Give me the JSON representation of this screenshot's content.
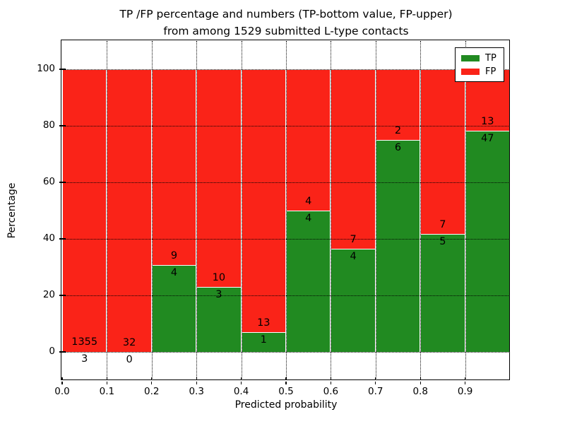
{
  "title": {
    "line1": "TP /FP percentage and numbers (TP-bottom value, FP-upper)",
    "line2": "from among 1529 submitted L-type contacts"
  },
  "axes": {
    "ylabel": "Percentage",
    "xlabel": "Predicted probability",
    "ytick_labels": [
      "0",
      "20",
      "40",
      "60",
      "80",
      "100"
    ],
    "ytick_values": [
      0,
      20,
      40,
      60,
      80,
      100
    ],
    "xtick_labels": [
      "0.0",
      "0.1",
      "0.2",
      "0.3",
      "0.4",
      "0.5",
      "0.6",
      "0.7",
      "0.8",
      "0.9"
    ],
    "xtick_values": [
      0.0,
      0.1,
      0.2,
      0.3,
      0.4,
      0.5,
      0.6,
      0.7,
      0.8,
      0.9
    ]
  },
  "legend": {
    "items": [
      {
        "label": "TP",
        "color": "#218A21"
      },
      {
        "label": "FP",
        "color": "#FA2318"
      }
    ]
  },
  "colors": {
    "tp_green": "#218A21",
    "fp_red": "#FA2318",
    "bar_edge": "#FFFFFF",
    "grid": "#000000",
    "background": "#FFFFFF"
  },
  "chart_data": {
    "type": "bar",
    "stacked": true,
    "title": "TP /FP percentage and numbers (TP-bottom value, FP-upper) from among 1529 submitted L-type contacts",
    "xlabel": "Predicted probability",
    "ylabel": "Percentage",
    "total_contacts": 1529,
    "bin_width": 0.1,
    "bin_starts": [
      0.0,
      0.1,
      0.2,
      0.3,
      0.4,
      0.5,
      0.6,
      0.7,
      0.8,
      0.9
    ],
    "categories": [
      "0.0-0.1",
      "0.1-0.2",
      "0.2-0.3",
      "0.3-0.4",
      "0.4-0.5",
      "0.5-0.6",
      "0.6-0.7",
      "0.7-0.8",
      "0.8-0.9",
      "0.9-1.0"
    ],
    "series": [
      {
        "name": "TP",
        "color": "#218A21",
        "counts": [
          3,
          0,
          4,
          3,
          1,
          4,
          4,
          6,
          5,
          47
        ],
        "percent": [
          0.2,
          0.0,
          30.8,
          23.1,
          7.1,
          50.0,
          36.4,
          75.0,
          41.7,
          78.3
        ]
      },
      {
        "name": "FP",
        "color": "#FA2318",
        "counts": [
          1355,
          32,
          9,
          10,
          13,
          4,
          7,
          2,
          7,
          13
        ],
        "percent": [
          99.8,
          100.0,
          69.2,
          76.9,
          92.9,
          50.0,
          63.6,
          25.0,
          58.3,
          21.7
        ]
      }
    ],
    "ylim": [
      -10,
      110
    ],
    "xlim": [
      0.0,
      1.0
    ],
    "grid": true,
    "grid_style": "dotted",
    "legend_position": "upper right"
  }
}
